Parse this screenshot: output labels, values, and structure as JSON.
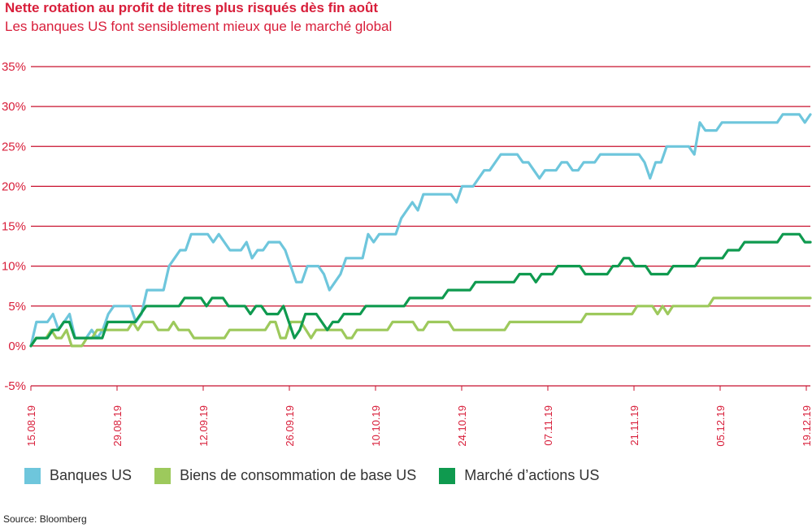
{
  "header": {
    "title": "Nette rotation au profit de titres plus risqués dès fin août",
    "subtitle": "Les banques US font sensiblement mieux que le marché global"
  },
  "source": "Source: Bloomberg",
  "colors": {
    "accent": "#d81e3a",
    "grid": "#c8102e"
  },
  "chart_data": {
    "type": "line",
    "yticks": [
      "35%",
      "30%",
      "25%",
      "20%",
      "15%",
      "10%",
      "5%",
      "0%",
      "-5%"
    ],
    "ylim": [
      -5,
      35
    ],
    "xticks": [
      "15.08.19",
      "29.08.19",
      "12.09.19",
      "26.09.19",
      "10.10.19",
      "24.10.19",
      "07.11.19",
      "21.11.19",
      "05.12.19",
      "19.12.19"
    ],
    "grid": true,
    "legend_position": "bottom",
    "series": [
      {
        "name": "Banques US",
        "color": "#6ec6dc",
        "values": [
          0,
          3,
          3,
          3,
          4,
          2,
          3,
          4,
          1,
          1,
          1,
          2,
          1,
          2,
          4,
          5,
          5,
          5,
          5,
          3,
          4,
          7,
          7,
          7,
          7,
          10,
          11,
          12,
          12,
          14,
          14,
          14,
          14,
          13,
          14,
          13,
          12,
          12,
          12,
          13,
          11,
          12,
          12,
          13,
          13,
          13,
          12,
          10,
          8,
          8,
          10,
          10,
          10,
          9,
          7,
          8,
          9,
          11,
          11,
          11,
          11,
          14,
          13,
          14,
          14,
          14,
          14,
          16,
          17,
          18,
          17,
          19,
          19,
          19,
          19,
          19,
          19,
          18,
          20,
          20,
          20,
          21,
          22,
          22,
          23,
          24,
          24,
          24,
          24,
          23,
          23,
          22,
          21,
          22,
          22,
          22,
          23,
          23,
          22,
          22,
          23,
          23,
          23,
          24,
          24,
          24,
          24,
          24,
          24,
          24,
          24,
          23,
          21,
          23,
          23,
          25,
          25,
          25,
          25,
          25,
          24,
          28,
          27,
          27,
          27,
          28,
          28,
          28,
          28,
          28,
          28,
          28,
          28,
          28,
          28,
          28,
          29,
          29,
          29,
          29,
          28,
          29
        ]
      },
      {
        "name": "Biens de consommation de base US",
        "color": "#9dc95c",
        "values": [
          0,
          1,
          1,
          1,
          2,
          1,
          1,
          2,
          0,
          0,
          0,
          1,
          1,
          2,
          2,
          2,
          2,
          2,
          2,
          2,
          3,
          2,
          3,
          3,
          3,
          2,
          2,
          2,
          3,
          2,
          2,
          2,
          1,
          1,
          1,
          1,
          1,
          1,
          1,
          2,
          2,
          2,
          2,
          2,
          2,
          2,
          2,
          3,
          3,
          1,
          1,
          3,
          3,
          3,
          2,
          1,
          2,
          2,
          2,
          2,
          2,
          2,
          1,
          1,
          2,
          2,
          2,
          2,
          2,
          2,
          2,
          3,
          3,
          3,
          3,
          3,
          2,
          2,
          3,
          3,
          3,
          3,
          3,
          2,
          2,
          2,
          2,
          2,
          2,
          2,
          2,
          2,
          2,
          2,
          3,
          3,
          3,
          3,
          3,
          3,
          3,
          3,
          3,
          3,
          3,
          3,
          3,
          3,
          3,
          4,
          4,
          4,
          4,
          4,
          4,
          4,
          4,
          4,
          4,
          5,
          5,
          5,
          5,
          4,
          5,
          4,
          5,
          5,
          5,
          5,
          5,
          5,
          5,
          5,
          6,
          6,
          6,
          6,
          6,
          6,
          6,
          6,
          6,
          6,
          6,
          6,
          6,
          6,
          6,
          6,
          6,
          6,
          6,
          6
        ]
      },
      {
        "name": "Marché d’actions US",
        "color": "#0f9a4f",
        "values": [
          0,
          1,
          1,
          1,
          2,
          2,
          3,
          3,
          1,
          1,
          1,
          1,
          1,
          1,
          3,
          3,
          3,
          3,
          3,
          3,
          4,
          5,
          5,
          5,
          5,
          5,
          5,
          5,
          6,
          6,
          6,
          6,
          5,
          6,
          6,
          6,
          5,
          5,
          5,
          5,
          4,
          5,
          5,
          4,
          4,
          4,
          5,
          3,
          1,
          2,
          4,
          4,
          4,
          3,
          2,
          3,
          3,
          4,
          4,
          4,
          4,
          5,
          5,
          5,
          5,
          5,
          5,
          5,
          5,
          6,
          6,
          6,
          6,
          6,
          6,
          6,
          7,
          7,
          7,
          7,
          7,
          8,
          8,
          8,
          8,
          8,
          8,
          8,
          8,
          9,
          9,
          9,
          8,
          9,
          9,
          9,
          10,
          10,
          10,
          10,
          10,
          9,
          9,
          9,
          9,
          9,
          10,
          10,
          11,
          11,
          10,
          10,
          10,
          9,
          9,
          9,
          9,
          10,
          10,
          10,
          10,
          10,
          11,
          11,
          11,
          11,
          11,
          12,
          12,
          12,
          13,
          13,
          13,
          13,
          13,
          13,
          13,
          14,
          14,
          14,
          14,
          13,
          13
        ]
      }
    ]
  }
}
